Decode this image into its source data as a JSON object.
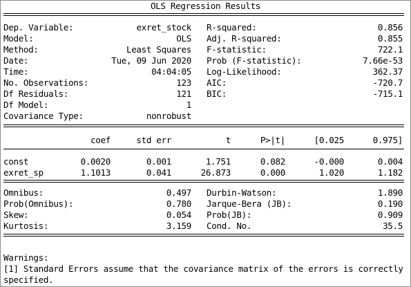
{
  "title": "OLS Regression Results",
  "summary_left": [
    {
      "label": "Dep. Variable:",
      "value": "exret_stock"
    },
    {
      "label": "Model:",
      "value": "OLS"
    },
    {
      "label": "Method:",
      "value": "Least Squares"
    },
    {
      "label": "Date:",
      "value": "Tue, 09 Jun 2020"
    },
    {
      "label": "Time:",
      "value": "04:04:05"
    },
    {
      "label": "No. Observations:",
      "value": "123"
    },
    {
      "label": "Df Residuals:",
      "value": "121"
    },
    {
      "label": "Df Model:",
      "value": "1"
    },
    {
      "label": "Covariance Type:",
      "value": "nonrobust"
    }
  ],
  "summary_right": [
    {
      "label": "R-squared:",
      "value": "0.856"
    },
    {
      "label": "Adj. R-squared:",
      "value": "0.855"
    },
    {
      "label": "F-statistic:",
      "value": "722.1"
    },
    {
      "label": "Prob (F-statistic):",
      "value": "7.66e-53"
    },
    {
      "label": "Log-Likelihood:",
      "value": "362.37"
    },
    {
      "label": "AIC:",
      "value": "-720.7"
    },
    {
      "label": "BIC:",
      "value": "-715.1"
    }
  ],
  "coef_table": {
    "headers": [
      "coef",
      "std err",
      "t",
      "P>|t|",
      "[0.025",
      "0.975]"
    ],
    "rows": [
      {
        "name": "const",
        "values": [
          "0.0020",
          "0.001",
          "1.751",
          "0.082",
          "-0.000",
          "0.004"
        ]
      },
      {
        "name": "exret_sp",
        "values": [
          "1.1013",
          "0.041",
          "26.873",
          "0.000",
          "1.020",
          "1.182"
        ]
      }
    ]
  },
  "diagnostics_left": [
    {
      "label": "Omnibus:",
      "value": "0.497"
    },
    {
      "label": "Prob(Omnibus):",
      "value": "0.780"
    },
    {
      "label": "Skew:",
      "value": "0.054"
    },
    {
      "label": "Kurtosis:",
      "value": "3.159"
    }
  ],
  "diagnostics_right": [
    {
      "label": "Durbin-Watson:",
      "value": "1.890"
    },
    {
      "label": "Jarque-Bera (JB):",
      "value": "0.190"
    },
    {
      "label": "Prob(JB):",
      "value": "0.909"
    },
    {
      "label": "Cond. No.",
      "value": "35.5"
    }
  ],
  "warnings": {
    "heading": "Warnings:",
    "line1": "[1] Standard Errors assume that the covariance matrix of the errors is correctly",
    "line2": "specified."
  }
}
